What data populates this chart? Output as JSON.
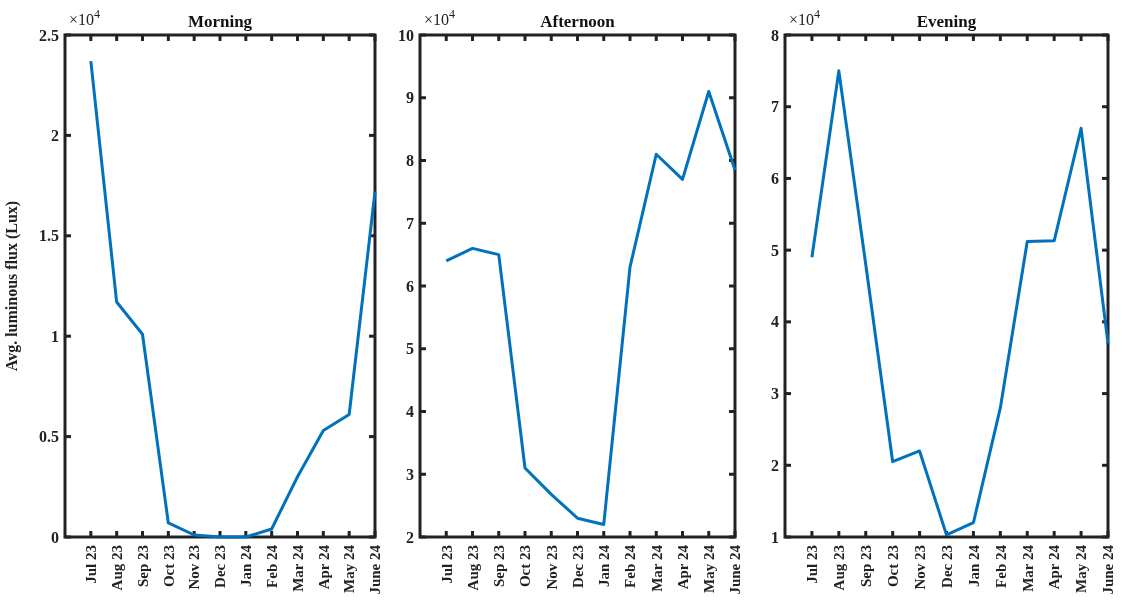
{
  "chart_data": [
    {
      "type": "line",
      "title": "Morning",
      "ylabel": "Avg. luminous flux (Lux)",
      "annotations": [
        "×10$^{4}$"
      ],
      "categories": [
        "Jul 23",
        "Aug 23",
        "Sep 23",
        "Oct 23",
        "Nov 23",
        "Dec 23",
        "Jan 24",
        "Feb 24",
        "Mar 24",
        "Apr 24",
        "May 24",
        "June 24"
      ],
      "series": [
        {
          "color": "#0072bd",
          "values": [
            2.37,
            1.17,
            1.01,
            0.07,
            0.01,
            0,
            0,
            0.04,
            0.3,
            0.53,
            0.61,
            1.72
          ]
        }
      ],
      "ylim": [
        0,
        2.5
      ],
      "yticks": [
        0,
        0.5,
        1,
        1.5,
        2,
        2.5
      ]
    },
    {
      "type": "line",
      "title": "Afternoon",
      "annotations": [
        "×10$^{4}$"
      ],
      "categories": [
        "Jul 23",
        "Aug 23",
        "Sep 23",
        "Oct 23",
        "Nov 23",
        "Dec 23",
        "Jan 24",
        "Feb 24",
        "Mar 24",
        "Apr 24",
        "May 24",
        "June 24"
      ],
      "series": [
        {
          "color": "#0072bd",
          "values": [
            6.4,
            6.6,
            6.5,
            3.1,
            2.68,
            2.3,
            2.2,
            6.3,
            8.1,
            7.7,
            9.1,
            7.85
          ]
        }
      ],
      "ylim": [
        2,
        10
      ],
      "yticks": [
        2,
        3,
        4,
        5,
        6,
        7,
        8,
        9,
        10
      ]
    },
    {
      "type": "line",
      "title": "Evening",
      "annotations": [
        "×10$^{4}$"
      ],
      "categories": [
        "Jul 23",
        "Aug 23",
        "Sep 23",
        "Oct 23",
        "Nov 23",
        "Dec 23",
        "Jan 24",
        "Feb 24",
        "Mar 24",
        "Apr 24",
        "May 24",
        "June 24"
      ],
      "series": [
        {
          "color": "#0072bd",
          "values": [
            4.9,
            7.5,
            4.8,
            2.05,
            2.2,
            1.03,
            1.2,
            2.8,
            5.12,
            5.13,
            6.7,
            3.7
          ]
        }
      ],
      "ylim": [
        1,
        8
      ],
      "yticks": [
        1,
        2,
        3,
        4,
        5,
        6,
        7,
        8
      ]
    }
  ]
}
